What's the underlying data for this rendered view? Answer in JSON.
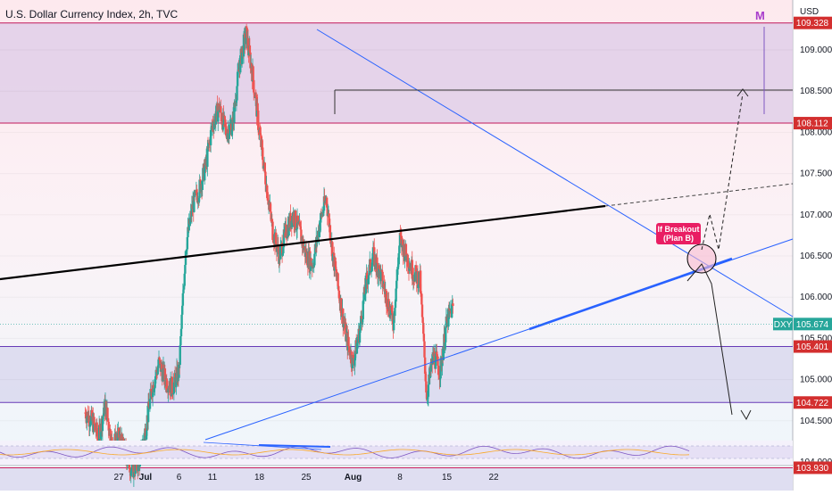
{
  "header": {
    "title": "U.S. Dollar Currency Index, 2h, TVC",
    "currency": "USD",
    "logo_letter": "M"
  },
  "colors": {
    "up": "#26a69a",
    "down": "#ef5350",
    "zone_purple": "#e1cfe9",
    "zone_blue": "#d9d8ef",
    "zone_border_pink": "#c2185b",
    "zone_border_purple": "#673ab7",
    "trendline_blue": "#2962ff",
    "support_blue": "#2962ff",
    "black_line": "#000000",
    "price_tag": "#26a69a",
    "level_tag": "#d32f2f",
    "annotation": "#e91e63"
  },
  "annotation": {
    "line1": "If Breakout",
    "line2": "(Plan B)"
  },
  "chart_data": {
    "type": "candlestick",
    "symbol": "DXY",
    "interval": "2h",
    "current_price": 105.674,
    "price_axis": {
      "ticks": [
        109.0,
        108.5,
        108.0,
        107.5,
        107.0,
        106.5,
        106.0,
        105.5,
        105.0,
        104.5,
        104.0
      ],
      "tick_labels": [
        "109.000",
        "108.500",
        "108.000",
        "107.500",
        "107.000",
        "106.500",
        "106.000",
        "105.500",
        "105.000",
        "104.500",
        "104.000"
      ]
    },
    "date_axis": {
      "labels": [
        "27",
        "Jul",
        "6",
        "11",
        "18",
        "25",
        "Aug",
        "8",
        "15",
        "22"
      ],
      "values": [
        -4,
        0,
        5,
        10,
        17,
        24,
        31,
        38,
        45,
        52
      ]
    },
    "zones": [
      {
        "name": "upper-resistance",
        "top": 109.328,
        "bottom": 108.112,
        "color": "#e1cfe9"
      },
      {
        "name": "middle-support",
        "top": 105.401,
        "bottom": 104.722,
        "color": "#d9d8ef"
      },
      {
        "name": "lower-support",
        "top": 103.93,
        "bottom": 103.6,
        "color": "#d9d8ef"
      }
    ],
    "levels": [
      {
        "value": 109.328,
        "label": "109.328"
      },
      {
        "value": 108.112,
        "label": "108.112"
      },
      {
        "value": 105.401,
        "label": "105.401"
      },
      {
        "value": 104.722,
        "label": "104.722"
      },
      {
        "value": 103.93,
        "label": "103.930"
      }
    ],
    "price_tag_label": "105.674",
    "ohlc_path": [
      [
        -9,
        104.6
      ],
      [
        -8,
        104.5
      ],
      [
        -7,
        104.3
      ],
      [
        -6,
        104.7
      ],
      [
        -5,
        104.2
      ],
      [
        -4,
        104.3
      ],
      [
        -3,
        104.1
      ],
      [
        -2,
        103.9
      ],
      [
        -1,
        104.0
      ],
      [
        0,
        104.4
      ],
      [
        1,
        104.9
      ],
      [
        2,
        105.2
      ],
      [
        3,
        105.0
      ],
      [
        4,
        104.9
      ],
      [
        5,
        105.1
      ],
      [
        6,
        106.6
      ],
      [
        7,
        107.1
      ],
      [
        8,
        107.3
      ],
      [
        9,
        107.6
      ],
      [
        10,
        108.1
      ],
      [
        11,
        108.3
      ],
      [
        12,
        108.0
      ],
      [
        13,
        108.1
      ],
      [
        14,
        108.8
      ],
      [
        15,
        109.2
      ],
      [
        16,
        108.7
      ],
      [
        17,
        108.0
      ],
      [
        18,
        107.4
      ],
      [
        19,
        106.8
      ],
      [
        20,
        106.5
      ],
      [
        21,
        106.8
      ],
      [
        22,
        107.0
      ],
      [
        23,
        106.8
      ],
      [
        24,
        106.5
      ],
      [
        25,
        106.4
      ],
      [
        26,
        106.9
      ],
      [
        27,
        107.2
      ],
      [
        28,
        106.5
      ],
      [
        29,
        106.0
      ],
      [
        30,
        105.5
      ],
      [
        31,
        105.2
      ],
      [
        32,
        105.6
      ],
      [
        33,
        106.2
      ],
      [
        34,
        106.5
      ],
      [
        35,
        106.3
      ],
      [
        36,
        106.0
      ],
      [
        37,
        105.7
      ],
      [
        38,
        106.7
      ],
      [
        39,
        106.5
      ],
      [
        40,
        106.3
      ],
      [
        41,
        106.2
      ],
      [
        42,
        104.8
      ],
      [
        43,
        105.3
      ],
      [
        44,
        105.1
      ],
      [
        45,
        105.7
      ],
      [
        46,
        105.9
      ]
    ],
    "rsi_panel": true
  }
}
